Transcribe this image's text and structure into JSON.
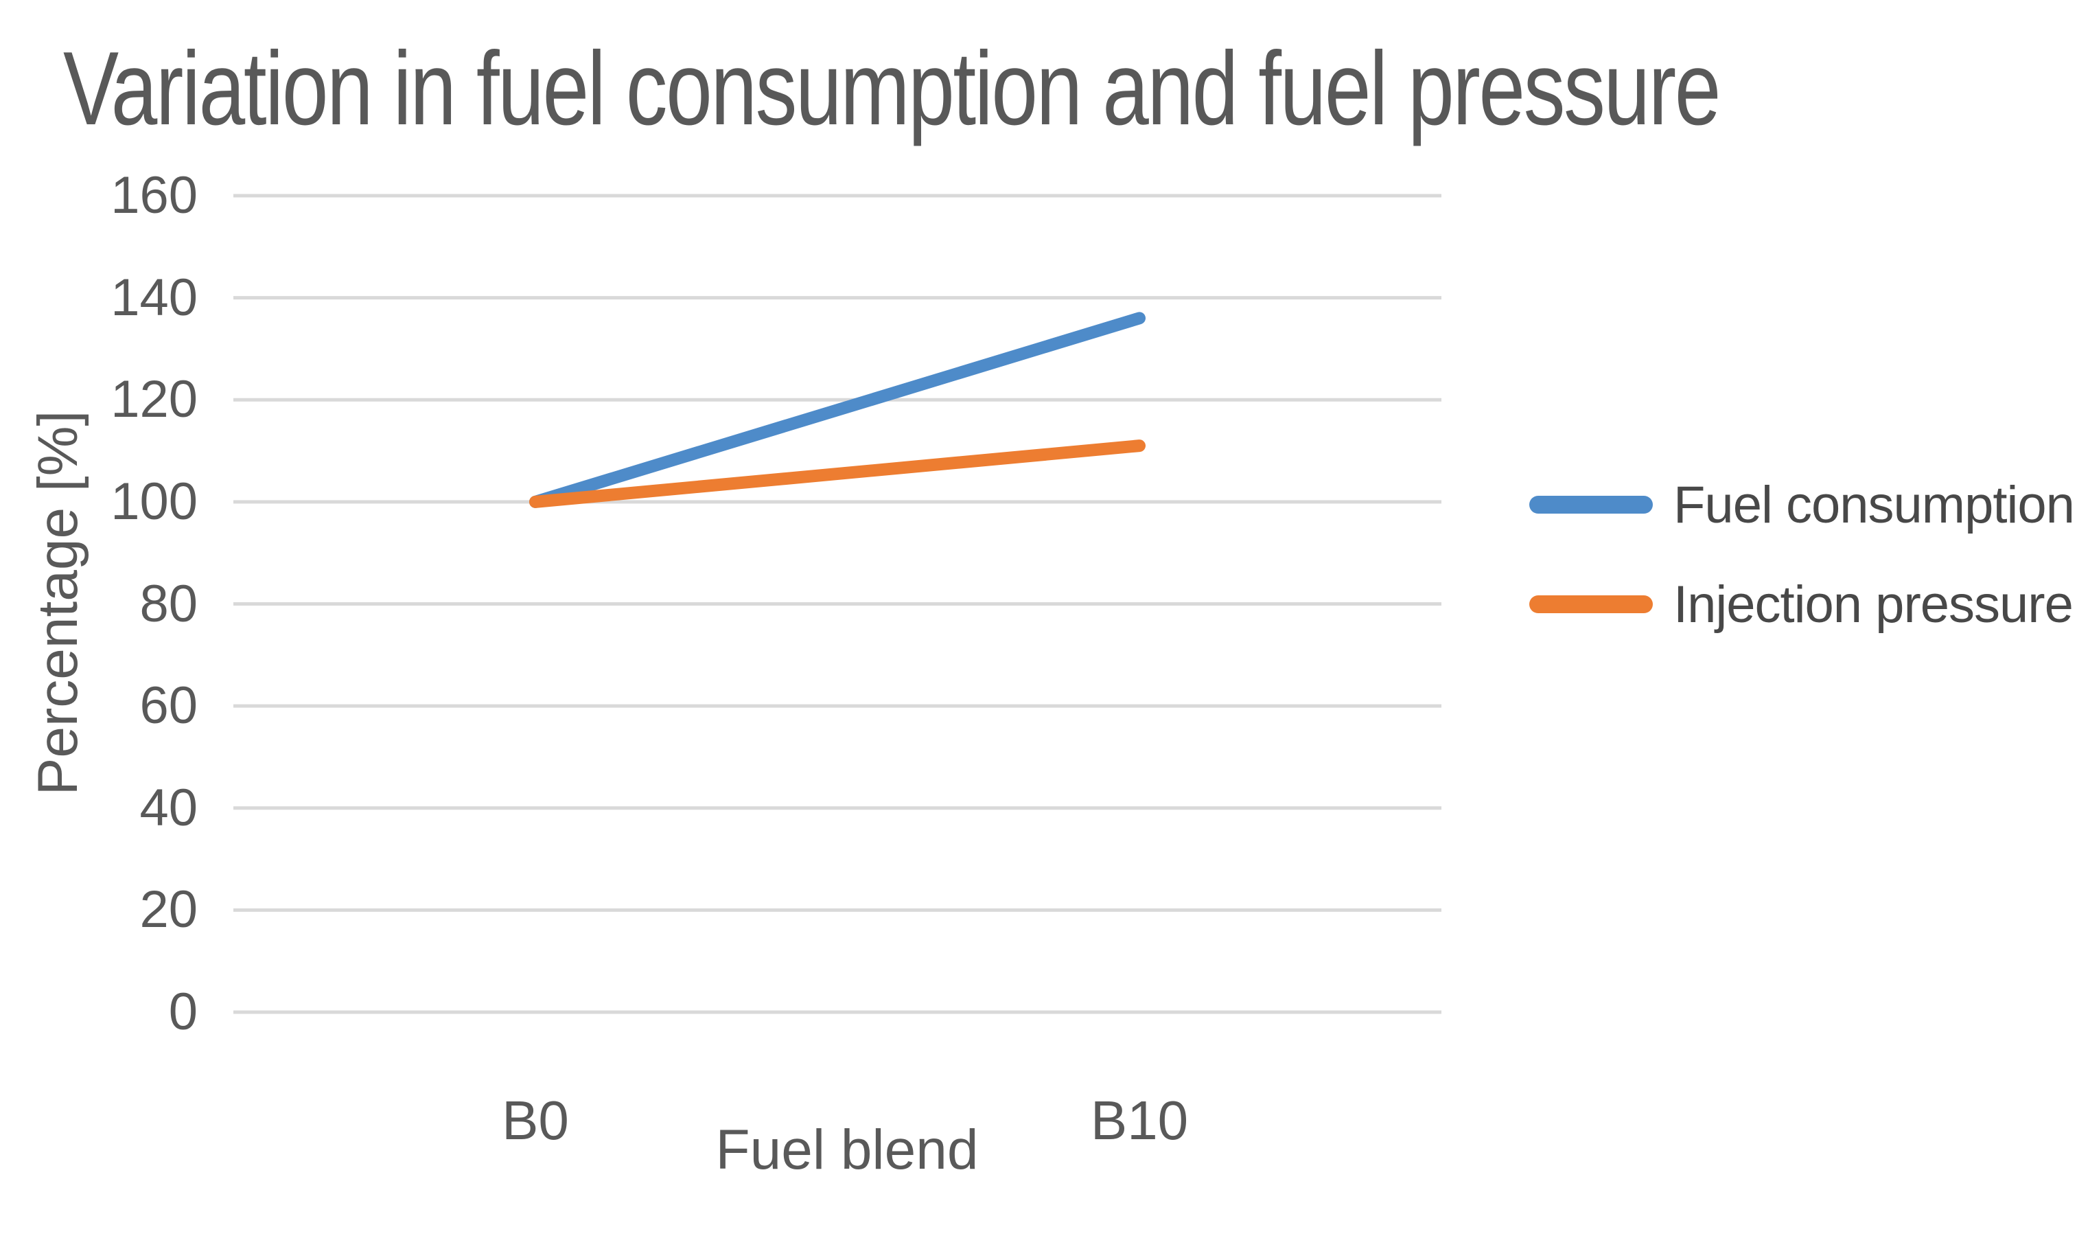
{
  "chart_data": {
    "type": "line",
    "title": "Variation in fuel consumption and fuel pressure",
    "xlabel": "Fuel blend",
    "ylabel": "Percentage [%]",
    "categories": [
      "B0",
      "B10"
    ],
    "series": [
      {
        "name": "Fuel consumption",
        "color": "#4E8BC9",
        "values": [
          100,
          136
        ]
      },
      {
        "name": "Injection pressure",
        "color": "#ED7D31",
        "values": [
          100,
          111
        ]
      }
    ],
    "ylim": [
      0,
      160
    ],
    "ytick_step": 20,
    "yticks": [
      0,
      20,
      40,
      60,
      80,
      100,
      120,
      140,
      160
    ],
    "grid": true,
    "legend_position": "right",
    "styles": {
      "text_color": "#595959",
      "legend_text_color": "#484848",
      "gridline_color": "#D9D9D9",
      "background": "#FFFFFF"
    }
  }
}
